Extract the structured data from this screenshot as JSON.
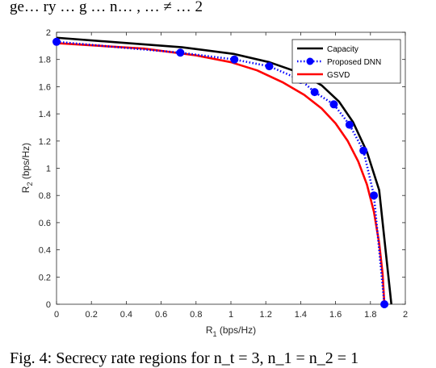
{
  "page": {
    "top_text": "ge… ry … g … n… , … ≠ … 2",
    "caption": "Fig. 4: Secrecy rate regions for n_t = 3, n_1 = n_2 = 1"
  },
  "chart_data": {
    "type": "line",
    "xlabel": "R",
    "xlabel_sub": "1",
    "xlabel_unit": " (bps/Hz)",
    "ylabel": "R",
    "ylabel_sub": "2",
    "ylabel_unit": " (bps/Hz)",
    "xlim": [
      0,
      2
    ],
    "ylim": [
      0,
      2
    ],
    "xticks": [
      "0",
      "0.2",
      "0.4",
      "0.6",
      "0.8",
      "1",
      "1.2",
      "1.4",
      "1.6",
      "1.8",
      "2"
    ],
    "yticks": [
      "0",
      "0.2",
      "0.4",
      "0.6",
      "0.8",
      "1",
      "1.2",
      "1.4",
      "1.6",
      "1.8",
      "2"
    ],
    "grid": false,
    "legend_position": "top-right",
    "series": [
      {
        "name": "Capacity",
        "color": "#000000",
        "style": "solid",
        "marker": "none",
        "x": [
          0,
          0.72,
          1.02,
          1.22,
          1.4,
          1.52,
          1.62,
          1.7,
          1.78,
          1.85,
          1.92
        ],
        "y": [
          1.96,
          1.89,
          1.84,
          1.78,
          1.7,
          1.61,
          1.49,
          1.34,
          1.12,
          0.84,
          0
        ]
      },
      {
        "name": "Proposed DNN",
        "color": "#0000ff",
        "style": "dotted",
        "marker": "circle",
        "x": [
          0,
          0.71,
          1.02,
          1.22,
          1.4,
          1.48,
          1.59,
          1.68,
          1.76,
          1.82,
          1.88
        ],
        "y": [
          1.93,
          1.85,
          1.8,
          1.75,
          1.65,
          1.56,
          1.47,
          1.32,
          1.13,
          0.8,
          0
        ]
      },
      {
        "name": "GSVD",
        "color": "#ff0000",
        "style": "solid",
        "marker": "none",
        "x": [
          0,
          0.5,
          0.8,
          1.0,
          1.15,
          1.3,
          1.42,
          1.52,
          1.6,
          1.67,
          1.73,
          1.78,
          1.82,
          1.85,
          1.87,
          1.88
        ],
        "y": [
          1.92,
          1.88,
          1.83,
          1.78,
          1.72,
          1.63,
          1.54,
          1.44,
          1.33,
          1.2,
          1.05,
          0.88,
          0.68,
          0.45,
          0.22,
          0
        ]
      }
    ]
  }
}
